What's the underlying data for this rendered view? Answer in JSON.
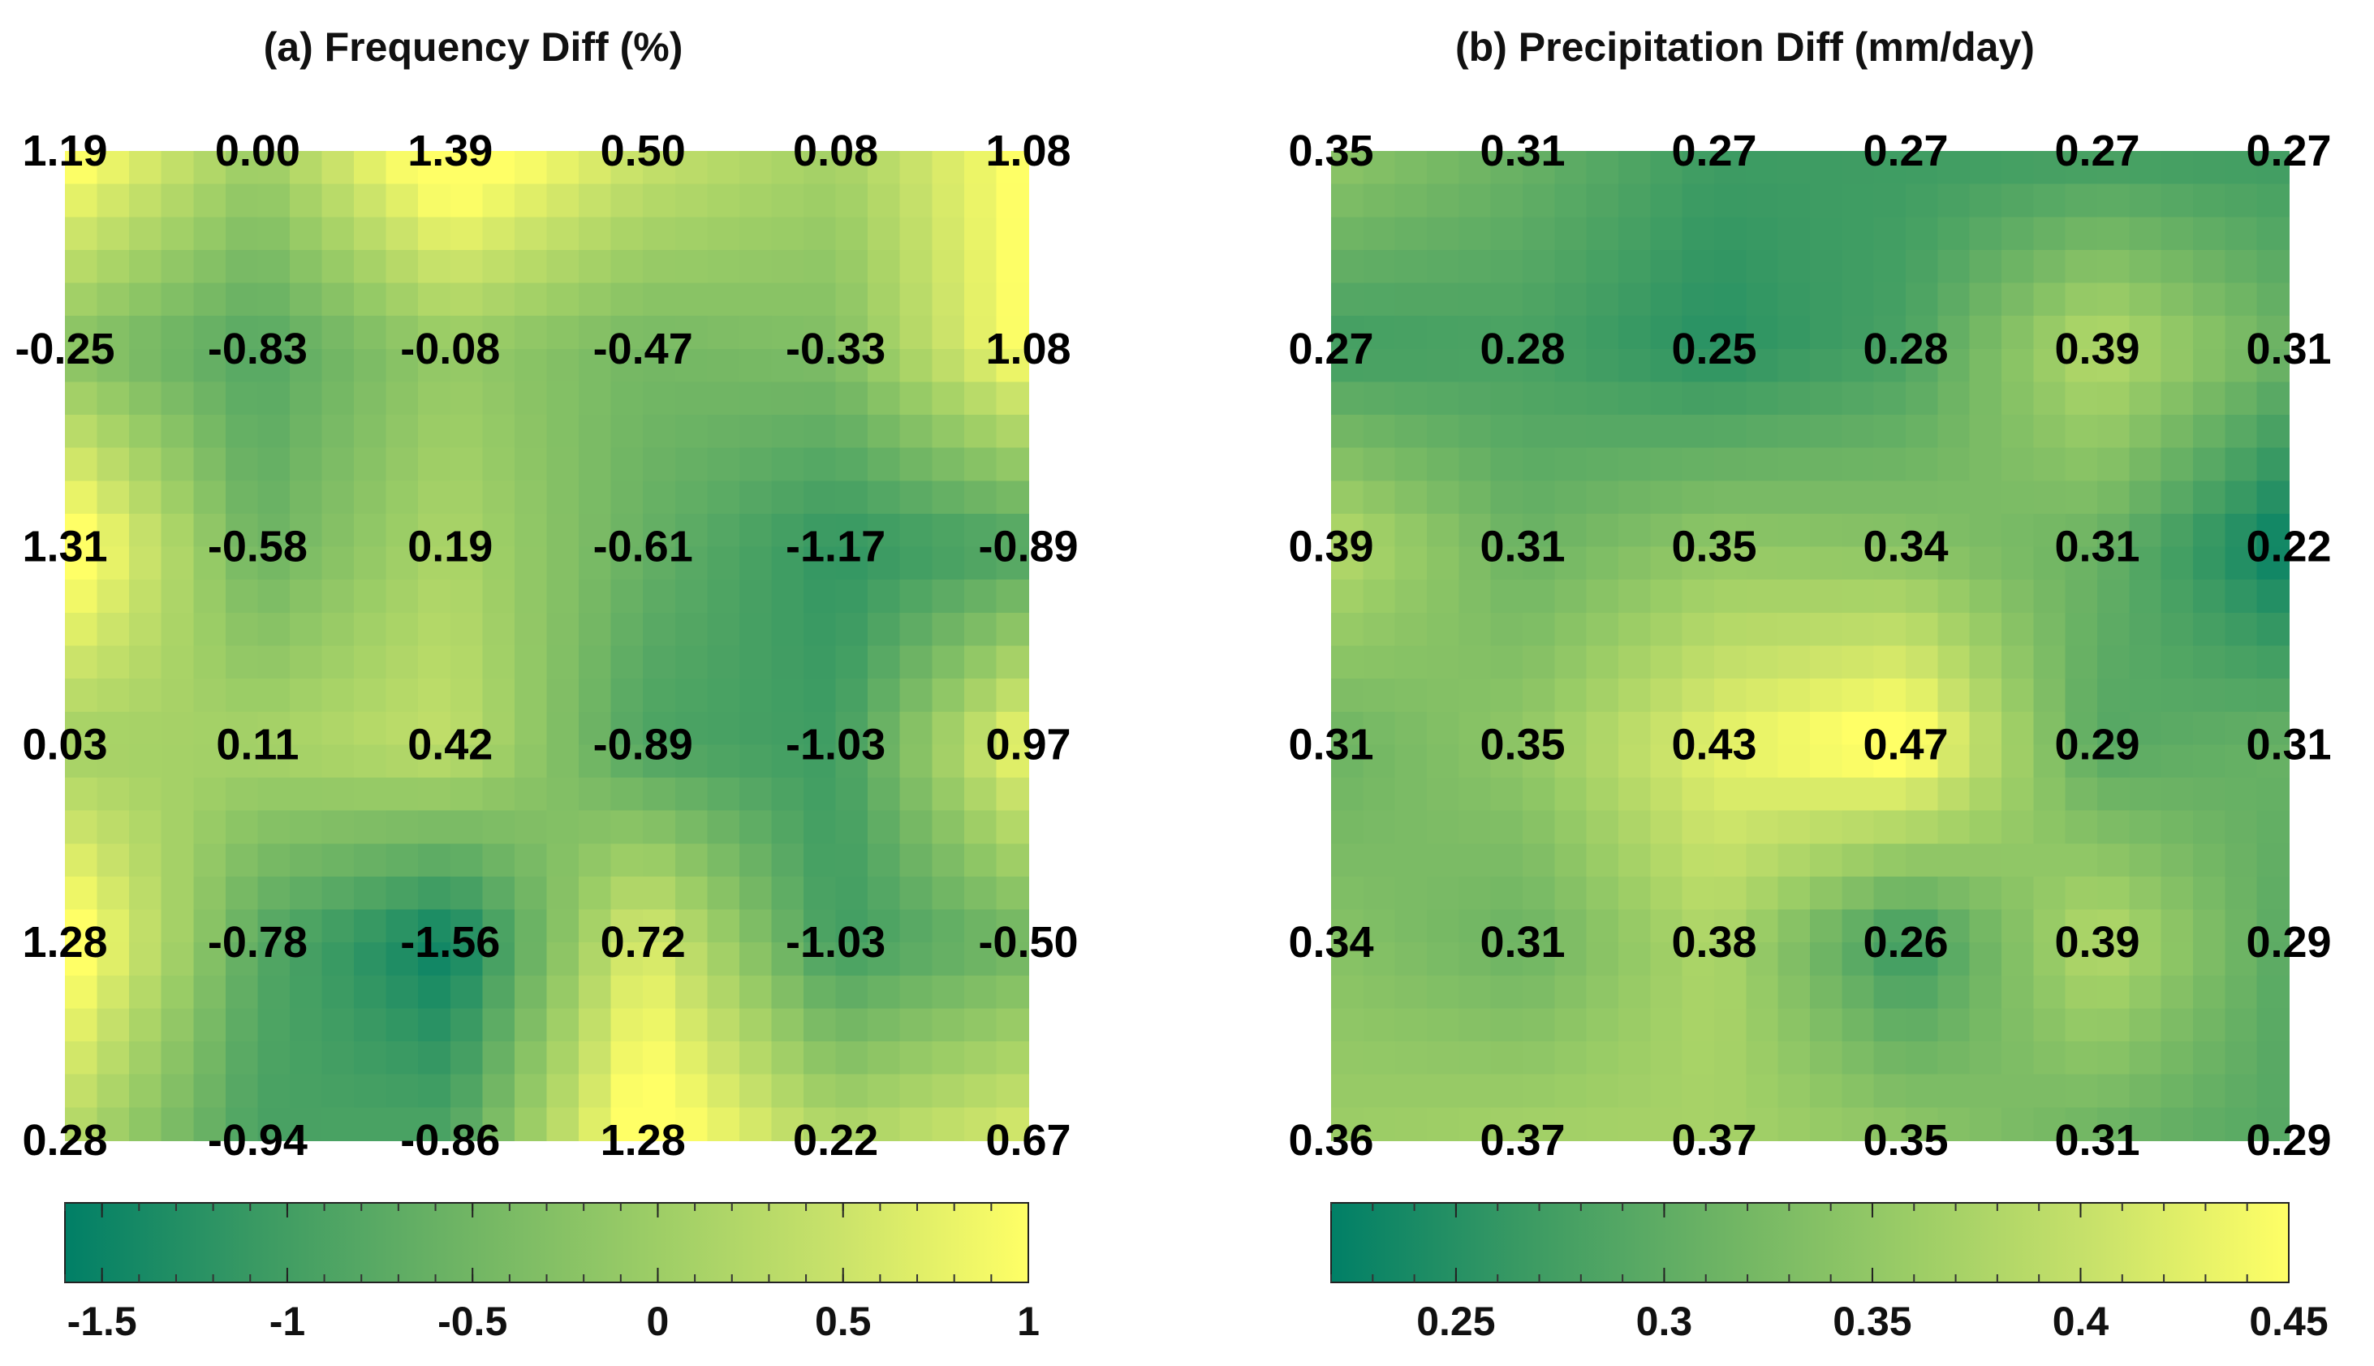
{
  "chart_data": [
    {
      "type": "heatmap",
      "title": "(a) Frequency Diff (%)",
      "rows": 6,
      "cols": 6,
      "values": [
        [
          1.19,
          0.0,
          1.39,
          0.5,
          0.08,
          1.08
        ],
        [
          -0.25,
          -0.83,
          -0.08,
          -0.47,
          -0.33,
          1.08
        ],
        [
          1.31,
          -0.58,
          0.19,
          -0.61,
          -1.17,
          -0.89
        ],
        [
          0.03,
          0.11,
          0.42,
          -0.89,
          -1.03,
          0.97
        ],
        [
          1.28,
          -0.78,
          -1.56,
          0.72,
          -1.03,
          -0.5
        ],
        [
          0.28,
          -0.94,
          -0.86,
          1.28,
          0.22,
          0.67
        ]
      ],
      "labels": [
        [
          "1.19",
          "0.00",
          "1.39",
          "0.50",
          "0.08",
          "1.08"
        ],
        [
          "-0.25",
          "-0.83",
          "-0.08",
          "-0.47",
          "-0.33",
          "1.08"
        ],
        [
          "1.31",
          "-0.58",
          "0.19",
          "-0.61",
          "-1.17",
          "-0.89"
        ],
        [
          "0.03",
          "0.11",
          "0.42",
          "-0.89",
          "-1.03",
          "0.97"
        ],
        [
          "1.28",
          "-0.78",
          "-1.56",
          "0.72",
          "-1.03",
          "-0.50"
        ],
        [
          "0.28",
          "-0.94",
          "-0.86",
          "1.28",
          "0.22",
          "0.67"
        ]
      ],
      "colorbar": {
        "range": [
          -1.6,
          1.0
        ],
        "ticks": [
          -1.5,
          -1,
          -0.5,
          0,
          0.5,
          1
        ],
        "tick_labels": [
          "-1.5",
          "-1",
          "-0.5",
          "0",
          "0.5",
          "1"
        ]
      }
    },
    {
      "type": "heatmap",
      "title": "(b) Precipitation Diff (mm/day)",
      "rows": 6,
      "cols": 6,
      "values": [
        [
          0.35,
          0.31,
          0.27,
          0.27,
          0.27,
          0.27
        ],
        [
          0.27,
          0.28,
          0.25,
          0.28,
          0.39,
          0.31
        ],
        [
          0.39,
          0.31,
          0.35,
          0.34,
          0.31,
          0.22
        ],
        [
          0.31,
          0.35,
          0.43,
          0.47,
          0.29,
          0.31
        ],
        [
          0.34,
          0.31,
          0.38,
          0.26,
          0.39,
          0.29
        ],
        [
          0.36,
          0.37,
          0.37,
          0.35,
          0.31,
          0.29
        ]
      ],
      "labels": [
        [
          "0.35",
          "0.31",
          "0.27",
          "0.27",
          "0.27",
          "0.27"
        ],
        [
          "0.27",
          "0.28",
          "0.25",
          "0.28",
          "0.39",
          "0.31"
        ],
        [
          "0.39",
          "0.31",
          "0.35",
          "0.34",
          "0.31",
          "0.22"
        ],
        [
          "0.31",
          "0.35",
          "0.43",
          "0.47",
          "0.29",
          "0.31"
        ],
        [
          "0.34",
          "0.31",
          "0.38",
          "0.26",
          "0.39",
          "0.29"
        ],
        [
          "0.36",
          "0.37",
          "0.37",
          "0.35",
          "0.31",
          "0.29"
        ]
      ],
      "colorbar": {
        "range": [
          0.22,
          0.45
        ],
        "ticks": [
          0.25,
          0.3,
          0.35,
          0.4,
          0.45
        ],
        "tick_labels": [
          "0.25",
          "0.3",
          "0.35",
          "0.4",
          "0.45"
        ]
      }
    }
  ],
  "colormap": [
    "#007f66",
    "#3a9a63",
    "#6cb364",
    "#9acc66",
    "#c9e26a",
    "#ffff66"
  ]
}
